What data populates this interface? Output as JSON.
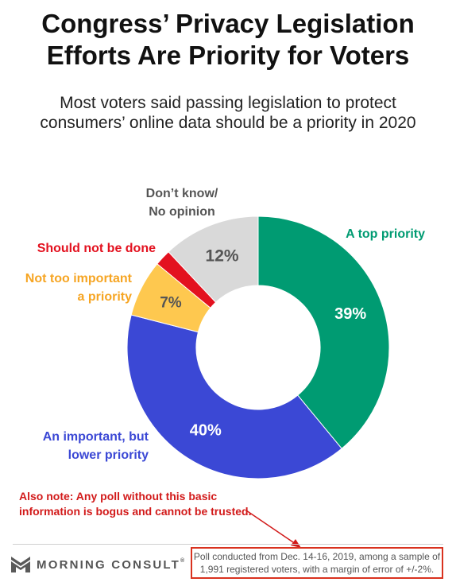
{
  "header": {
    "title_line1": "Congress’ Privacy Legislation",
    "title_line2": "Efforts Are Priority for Voters",
    "subtitle_line1": "Most voters said passing legislation to protect",
    "subtitle_line2": "consumers’ online data should be a priority in 2020"
  },
  "chart_data": {
    "type": "pie",
    "variant": "donut",
    "title": "Congress’ Privacy Legislation Efforts Are Priority for Voters",
    "subtitle": "Most voters said passing legislation to protect consumers’ online data should be a priority in 2020",
    "slices": [
      {
        "label_lines": [
          "A top priority"
        ],
        "value": 39,
        "display": "39%",
        "color": "#009b72",
        "label_color": "#009b72",
        "value_color": "#ffffff"
      },
      {
        "label_lines": [
          "An important, but",
          "lower priority"
        ],
        "value": 40,
        "display": "40%",
        "color": "#3b48d5",
        "label_color": "#3b48d5",
        "value_color": "#ffffff"
      },
      {
        "label_lines": [
          "Not too important",
          "a priority"
        ],
        "value": 7,
        "display": "7%",
        "color": "#fec84f",
        "label_color": "#f6a523",
        "value_color": "#555555"
      },
      {
        "label_lines": [
          "Should not be done"
        ],
        "value": 2,
        "display": "",
        "color": "#e3111f",
        "label_color": "#e3111f",
        "value_color": "#555555"
      },
      {
        "label_lines": [
          "Don’t know/",
          "No opinion"
        ],
        "value": 12,
        "display": "12%",
        "color": "#d9d9d9",
        "label_color": "#555555",
        "value_color": "#555555"
      }
    ]
  },
  "annotation": {
    "line1": "Also note: Any poll without this basic",
    "line2": "information is bogus and cannot be trusted.",
    "color": "#d21a1a"
  },
  "footer": {
    "logo_text": "MORNING CONSULT",
    "logo_mark": "®",
    "source_line1": "Poll conducted from Dec. 14-16, 2019, among a sample of",
    "source_line2": "1,991 registered voters, with a margin of error of +/-2%.",
    "box_color": "#d9321f"
  }
}
